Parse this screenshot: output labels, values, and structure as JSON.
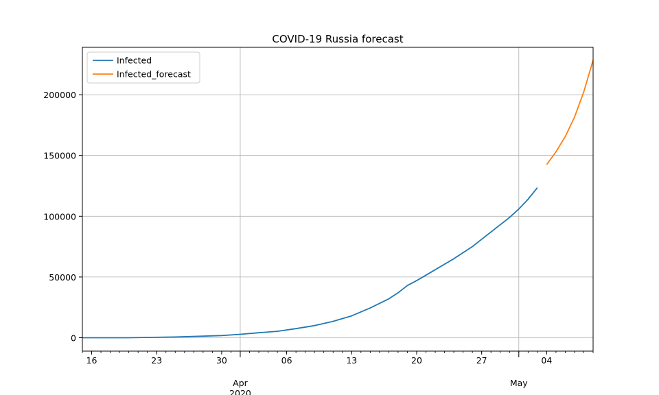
{
  "chart_data": {
    "type": "line",
    "title": "COVID-19 Russia forecast",
    "xlabel": "",
    "ylabel": "",
    "xlim": [
      "2020-03-15",
      "2020-05-09"
    ],
    "ylim": [
      -11000,
      239000
    ],
    "grid": true,
    "legend_position": "upper-left",
    "x_major_ticks": [
      {
        "date": "2020-04-01",
        "label": "Apr",
        "sublabel": "2020"
      },
      {
        "date": "2020-05-01",
        "label": "May",
        "sublabel": ""
      }
    ],
    "x_minor_labels": [
      {
        "date": "2020-03-16",
        "label": "16"
      },
      {
        "date": "2020-03-23",
        "label": "23"
      },
      {
        "date": "2020-03-30",
        "label": "30"
      },
      {
        "date": "2020-04-06",
        "label": "06"
      },
      {
        "date": "2020-04-13",
        "label": "13"
      },
      {
        "date": "2020-04-20",
        "label": "20"
      },
      {
        "date": "2020-04-27",
        "label": "27"
      },
      {
        "date": "2020-05-04",
        "label": "04"
      }
    ],
    "y_ticks": [
      0,
      50000,
      100000,
      150000,
      200000
    ],
    "y_tick_labels": [
      "0",
      "50000",
      "100000",
      "150000",
      "200000"
    ],
    "series": [
      {
        "name": "Infected",
        "color": "#1f77b4",
        "x": [
          "2020-03-15",
          "2020-03-20",
          "2020-03-25",
          "2020-03-28",
          "2020-03-30",
          "2020-04-01",
          "2020-04-03",
          "2020-04-05",
          "2020-04-07",
          "2020-04-09",
          "2020-04-11",
          "2020-04-13",
          "2020-04-15",
          "2020-04-17",
          "2020-04-18",
          "2020-04-19",
          "2020-04-20",
          "2020-04-22",
          "2020-04-24",
          "2020-04-26",
          "2020-04-28",
          "2020-04-30",
          "2020-05-01",
          "2020-05-02",
          "2020-05-03"
        ],
        "y": [
          0,
          0,
          600,
          1300,
          1800,
          2800,
          4100,
          5300,
          7500,
          10000,
          13500,
          18000,
          24500,
          32000,
          37000,
          43000,
          47000,
          56000,
          65000,
          75000,
          87000,
          99000,
          106000,
          114000,
          123500
        ]
      },
      {
        "name": "Infected_forecast",
        "color": "#ff7f0e",
        "x": [
          "2020-05-04",
          "2020-05-05",
          "2020-05-06",
          "2020-05-07",
          "2020-05-08",
          "2020-05-09"
        ],
        "y": [
          142500,
          153000,
          165500,
          181500,
          202500,
          228500
        ]
      }
    ]
  }
}
